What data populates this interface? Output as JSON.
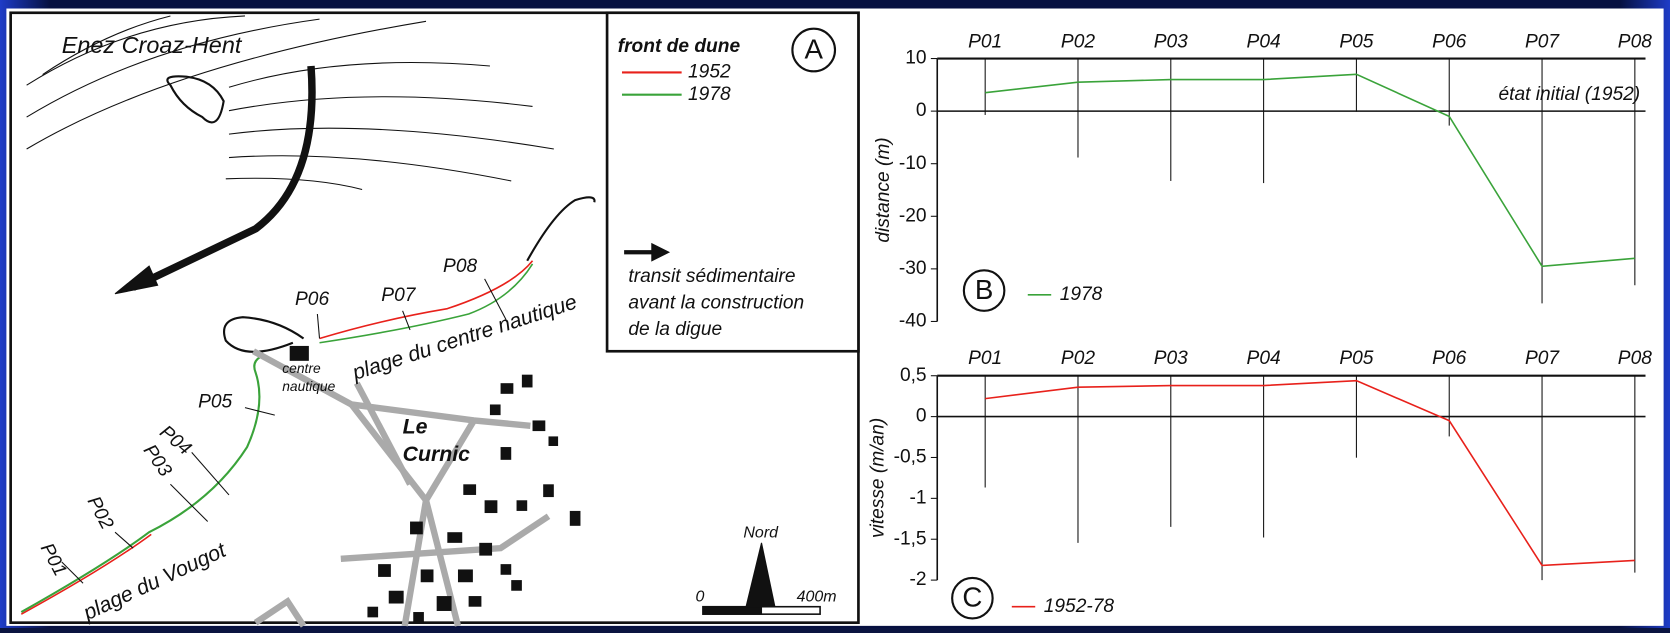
{
  "map": {
    "island": "Enez Croaz-Hent",
    "legend_title": "front de dune",
    "legend_items": [
      "1952",
      "1978"
    ],
    "panel_label": "A",
    "arrow_legend": [
      "transit sédimentaire",
      "avant la construction",
      "de la digue"
    ],
    "profiles": [
      "P01",
      "P02",
      "P03",
      "P04",
      "P05",
      "P06",
      "P07",
      "P08"
    ],
    "centre": [
      "centre",
      "nautique"
    ],
    "beach_north": "plage du centre nautique",
    "beach_south": "plage du Vougot",
    "village": [
      "Le",
      "Curnic"
    ],
    "north": "Nord",
    "scale": [
      "0",
      "400m"
    ]
  },
  "chart_data": [
    {
      "type": "line",
      "panel_label": "B",
      "annotation": "état initial (1952)",
      "ylabel": "distance (m)",
      "categories": [
        "P01",
        "P02",
        "P03",
        "P04",
        "P05",
        "P06",
        "P07",
        "P08"
      ],
      "series": [
        {
          "name": "1978",
          "color": "#3aa33a",
          "values": [
            3.5,
            5.5,
            6,
            6,
            7,
            -1,
            -29.5,
            -28
          ]
        }
      ],
      "ylim": [
        -40,
        10
      ],
      "yticks": [
        -40,
        -30,
        -20,
        -10,
        0,
        10
      ]
    },
    {
      "type": "line",
      "panel_label": "C",
      "ylabel": "vitesse (m/an)",
      "categories": [
        "P01",
        "P02",
        "P03",
        "P04",
        "P05",
        "P06",
        "P07",
        "P08"
      ],
      "series": [
        {
          "name": "1952-78",
          "color": "#e8211b",
          "values": [
            0.22,
            0.36,
            0.38,
            0.38,
            0.44,
            -0.05,
            -1.82,
            -1.76
          ]
        }
      ],
      "ylim": [
        -2,
        0.5
      ],
      "yticks": [
        {
          "value": -2,
          "label": "-2"
        },
        {
          "value": -1.5,
          "label": "-1,5"
        },
        {
          "value": -1,
          "label": "-1"
        },
        {
          "value": -0.5,
          "label": "-0,5"
        },
        {
          "value": 0,
          "label": "0"
        },
        {
          "value": 0.5,
          "label": "0,5"
        }
      ]
    }
  ]
}
